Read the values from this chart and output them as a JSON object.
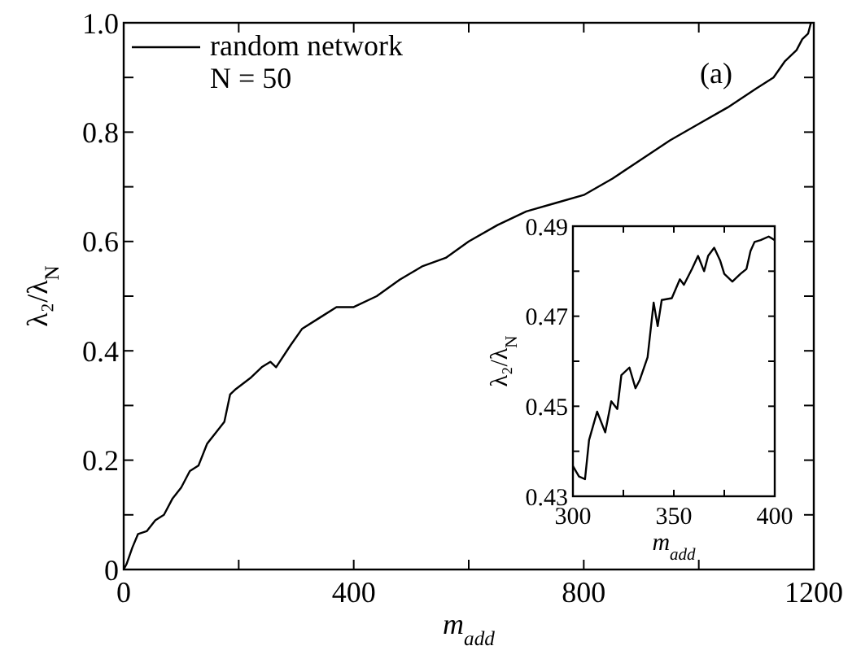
{
  "chart_data": [
    {
      "type": "line",
      "xlabel": "m$_{add}$",
      "ylabel": "λ₂/λ$_{N}$",
      "xlim": [
        0,
        1200
      ],
      "ylim": [
        0,
        1
      ],
      "xticks": [
        0,
        {
          "value": 200,
          "label": null
        },
        400,
        {
          "value": 600,
          "label": null
        },
        800,
        {
          "value": 1000,
          "label": null
        },
        1200
      ],
      "yticks": [
        0,
        {
          "value": 0.1,
          "label": null
        },
        0.2,
        {
          "value": 0.3,
          "label": null
        },
        0.4,
        {
          "value": 0.5,
          "label": null
        },
        0.6,
        {
          "value": 0.7,
          "label": null
        },
        0.8,
        {
          "value": 0.9,
          "label": null
        },
        {
          "value": 1,
          "label": "1.0"
        }
      ],
      "legend": "top left",
      "annotations": [
        "N = 50",
        "(a)"
      ],
      "series": [
        {
          "name": "random network",
          "color": "#000000",
          "x": [
            0,
            5,
            15,
            25,
            40,
            55,
            70,
            85,
            100,
            115,
            130,
            145,
            160,
            175,
            185,
            195,
            220,
            240,
            255,
            265,
            290,
            310,
            340,
            370,
            400,
            440,
            480,
            520,
            560,
            600,
            650,
            700,
            750,
            800,
            850,
            900,
            950,
            1000,
            1050,
            1100,
            1130,
            1150,
            1170,
            1180,
            1190,
            1195
          ],
          "values": [
            0,
            0.01,
            0.04,
            0.065,
            0.07,
            0.09,
            0.1,
            0.13,
            0.15,
            0.18,
            0.19,
            0.23,
            0.25,
            0.27,
            0.32,
            0.33,
            0.35,
            0.37,
            0.38,
            0.37,
            0.41,
            0.44,
            0.46,
            0.48,
            0.48,
            0.5,
            0.53,
            0.555,
            0.57,
            0.6,
            0.63,
            0.655,
            0.67,
            0.685,
            0.715,
            0.75,
            0.785,
            0.815,
            0.845,
            0.88,
            0.9,
            0.93,
            0.95,
            0.97,
            0.98,
            1.0
          ]
        }
      ]
    },
    {
      "type": "line",
      "xlabel": "m$_{add}$",
      "ylabel": "λ₂/λ$_{N}$",
      "xlim": [
        300,
        400
      ],
      "ylim": [
        0.43,
        0.49
      ],
      "xticks": [
        300,
        {
          "value": 325,
          "label": null
        },
        350,
        {
          "value": 375,
          "label": null
        },
        400
      ],
      "yticks": [
        0.43,
        {
          "value": 0.44,
          "label": null
        },
        0.45,
        {
          "value": 0.46,
          "label": null
        },
        0.47,
        {
          "value": 0.48,
          "label": null
        },
        0.49
      ],
      "series": [
        {
          "color": "#000000",
          "x": [
            300,
            303,
            306,
            308,
            312,
            316,
            319,
            322,
            324,
            328,
            331,
            333,
            337,
            340,
            342,
            344,
            349,
            353,
            355,
            359,
            362,
            365,
            367,
            370,
            373,
            375,
            379,
            383,
            386,
            388,
            390,
            393,
            397,
            400
          ],
          "values": [
            0.4367,
            0.4344,
            0.4338,
            0.4425,
            0.4488,
            0.4442,
            0.4511,
            0.4494,
            0.4569,
            0.4586,
            0.454,
            0.4557,
            0.4609,
            0.473,
            0.4678,
            0.4736,
            0.474,
            0.4782,
            0.477,
            0.4805,
            0.4834,
            0.48,
            0.4834,
            0.4852,
            0.4823,
            0.4794,
            0.4777,
            0.4794,
            0.4805,
            0.4845,
            0.4865,
            0.4869,
            0.4877,
            0.4869
          ]
        }
      ]
    }
  ]
}
